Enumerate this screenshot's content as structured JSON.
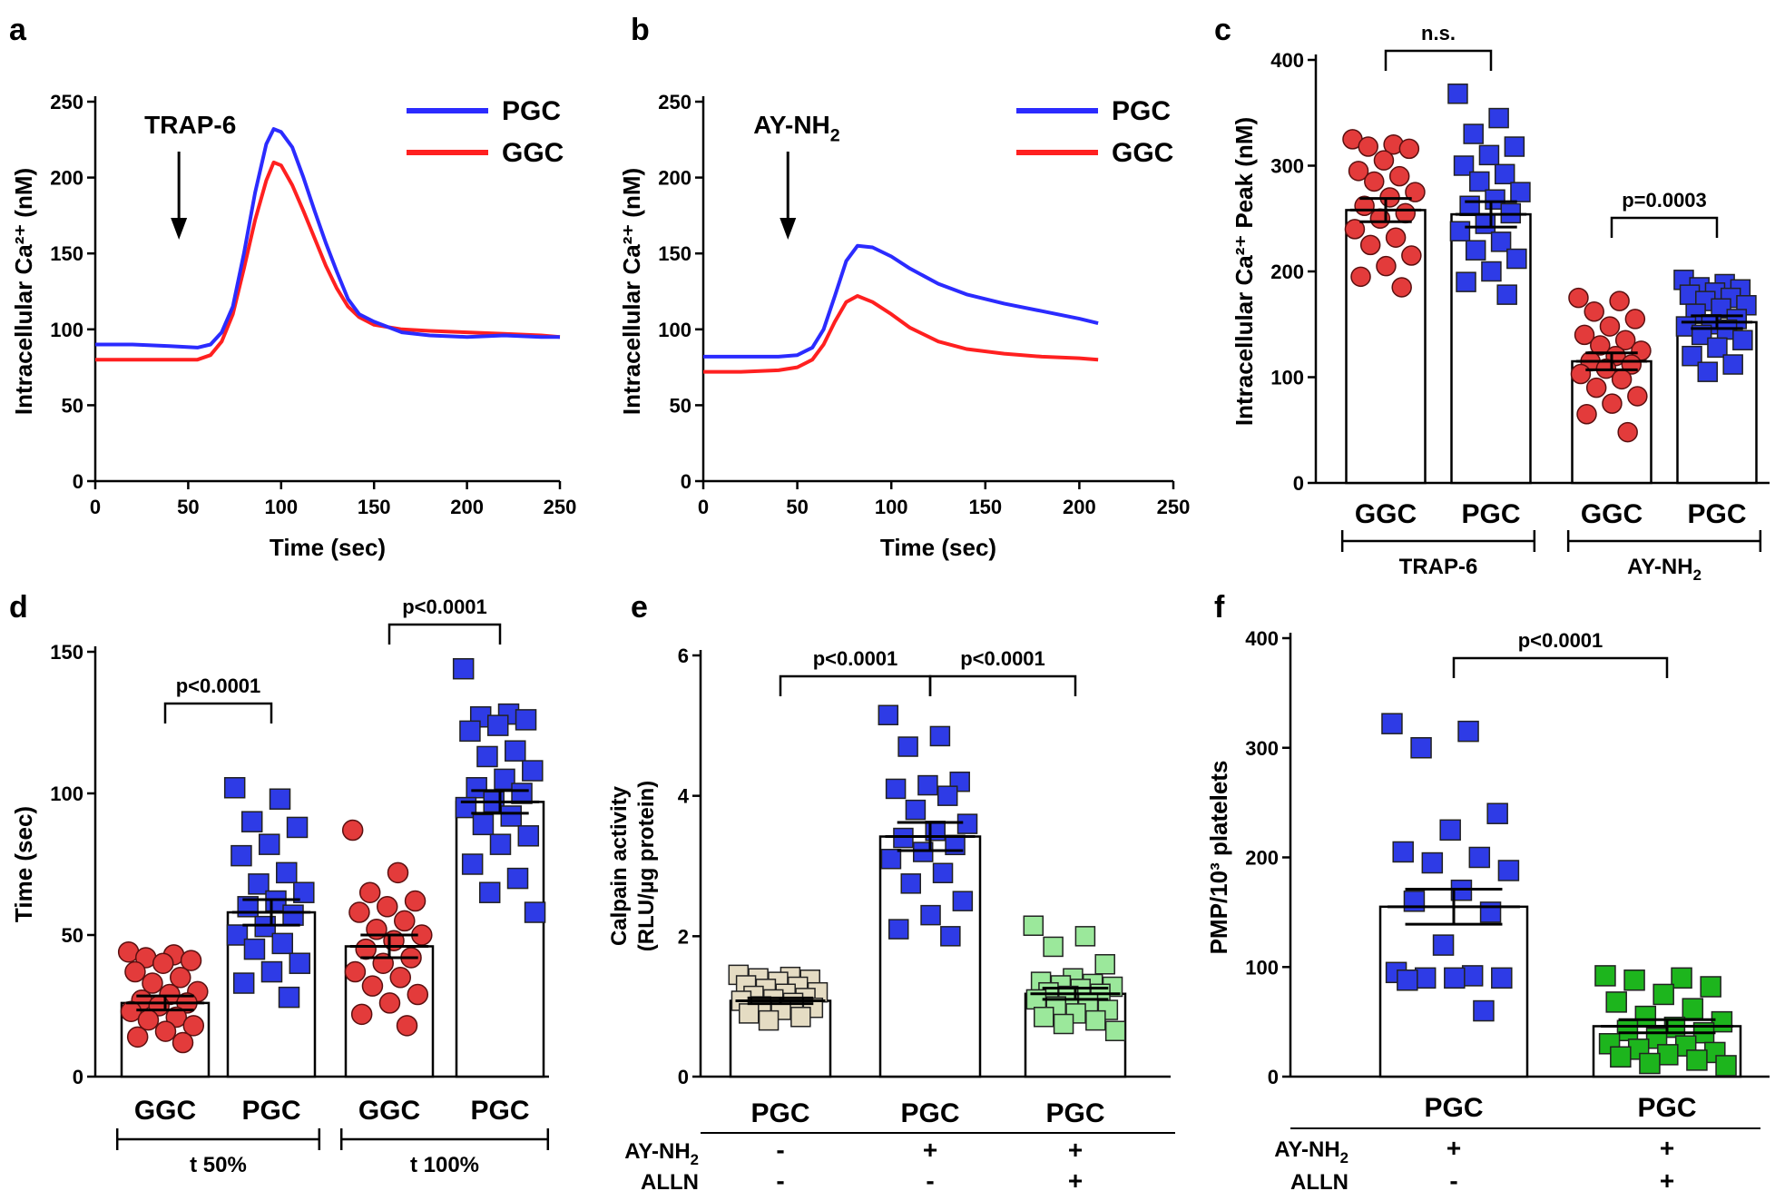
{
  "chart_data": [
    {
      "panel": "a",
      "type": "line",
      "xlabel": "Time (sec)",
      "ylabel": "Intracellular Ca²⁺ (nM)",
      "xlim": [
        0,
        250
      ],
      "ylim": [
        0,
        250
      ],
      "xticks": [
        0,
        50,
        100,
        150,
        200,
        250
      ],
      "yticks": [
        0,
        50,
        100,
        150,
        200,
        250
      ],
      "annotation": {
        "label": "TRAP-6",
        "x": 45
      },
      "series": [
        {
          "name": "PGC",
          "color": "#2b2bff",
          "x": [
            0,
            20,
            40,
            55,
            62,
            68,
            74,
            80,
            86,
            92,
            96,
            100,
            106,
            112,
            118,
            124,
            130,
            136,
            142,
            150,
            165,
            180,
            200,
            220,
            240,
            250
          ],
          "y": [
            90,
            90,
            89,
            88,
            90,
            98,
            115,
            150,
            190,
            222,
            232,
            230,
            220,
            200,
            178,
            157,
            138,
            120,
            110,
            105,
            98,
            96,
            95,
            96,
            95,
            95
          ]
        },
        {
          "name": "GGC",
          "color": "#ff2020",
          "x": [
            0,
            20,
            40,
            55,
            62,
            68,
            74,
            80,
            86,
            92,
            96,
            100,
            106,
            112,
            118,
            124,
            130,
            136,
            142,
            150,
            165,
            180,
            200,
            220,
            240,
            250
          ],
          "y": [
            80,
            80,
            80,
            80,
            83,
            92,
            110,
            140,
            172,
            198,
            210,
            208,
            195,
            178,
            160,
            142,
            127,
            115,
            108,
            103,
            100,
            99,
            98,
            97,
            96,
            95
          ]
        }
      ]
    },
    {
      "panel": "b",
      "type": "line",
      "xlabel": "Time (sec)",
      "ylabel": "Intracellular Ca²⁺ (nM)",
      "xlim": [
        0,
        250
      ],
      "ylim": [
        0,
        250
      ],
      "xticks": [
        0,
        50,
        100,
        150,
        200,
        250
      ],
      "yticks": [
        0,
        50,
        100,
        150,
        200,
        250
      ],
      "annotation": {
        "label": "AY-NH",
        "sub": "2",
        "x": 45
      },
      "series": [
        {
          "name": "PGC",
          "color": "#2b2bff",
          "x": [
            0,
            20,
            40,
            50,
            58,
            64,
            70,
            76,
            82,
            90,
            100,
            110,
            125,
            140,
            160,
            180,
            200,
            210
          ],
          "y": [
            82,
            82,
            82,
            83,
            88,
            100,
            122,
            145,
            155,
            154,
            148,
            140,
            130,
            123,
            117,
            112,
            107,
            104
          ]
        },
        {
          "name": "GGC",
          "color": "#ff2020",
          "x": [
            0,
            20,
            40,
            50,
            58,
            64,
            70,
            76,
            82,
            90,
            100,
            110,
            125,
            140,
            160,
            180,
            200,
            210
          ],
          "y": [
            72,
            72,
            73,
            75,
            80,
            90,
            105,
            118,
            122,
            118,
            110,
            101,
            92,
            87,
            84,
            82,
            81,
            80
          ]
        }
      ]
    },
    {
      "panel": "c",
      "type": "bar",
      "ylabel": "Intracellular Ca²⁺ Peak (nM)",
      "ylim": [
        0,
        400
      ],
      "yticks": [
        0,
        100,
        200,
        300,
        400
      ],
      "categories": [
        "GGC",
        "PGC",
        "GGC",
        "PGC"
      ],
      "groups": [
        {
          "label": "TRAP-6"
        },
        {
          "label": "AY-NH",
          "sub": "2"
        }
      ],
      "bars": [
        {
          "value": 258,
          "sem": 11,
          "color": "#e33b3b",
          "marker": "circle",
          "points": [
            325,
            320,
            318,
            316,
            305,
            295,
            290,
            285,
            275,
            270,
            262,
            255,
            250,
            240,
            232,
            225,
            215,
            205,
            195,
            185
          ]
        },
        {
          "value": 254,
          "sem": 12,
          "color": "#2e3be6",
          "marker": "square",
          "points": [
            368,
            345,
            330,
            318,
            310,
            300,
            292,
            285,
            275,
            268,
            262,
            255,
            245,
            238,
            228,
            220,
            212,
            200,
            190,
            178
          ]
        },
        {
          "value": 115,
          "sem": 8,
          "color": "#e33b3b",
          "marker": "circle",
          "points": [
            175,
            172,
            162,
            155,
            148,
            140,
            135,
            130,
            125,
            120,
            115,
            112,
            108,
            103,
            98,
            90,
            82,
            75,
            65,
            48
          ]
        },
        {
          "value": 152,
          "sem": 6,
          "color": "#2e3be6",
          "marker": "square",
          "points": [
            192,
            188,
            185,
            183,
            180,
            178,
            175,
            172,
            168,
            165,
            160,
            155,
            150,
            148,
            145,
            140,
            135,
            128,
            120,
            112,
            105
          ]
        }
      ],
      "brackets": [
        {
          "from": 0,
          "to": 1,
          "label": "n.s."
        },
        {
          "from": 2,
          "to": 3,
          "label": "p=0.0003"
        }
      ]
    },
    {
      "panel": "d",
      "type": "bar",
      "ylabel": "Time (sec)",
      "ylim": [
        0,
        150
      ],
      "yticks": [
        0,
        50,
        100,
        150
      ],
      "categories": [
        "GGC",
        "PGC",
        "GGC",
        "PGC"
      ],
      "groups": [
        {
          "label": "t 50%"
        },
        {
          "label": "t 100%"
        }
      ],
      "bars": [
        {
          "value": 26,
          "sem": 2.5,
          "color": "#e33b3b",
          "marker": "circle",
          "points": [
            44,
            43,
            42,
            41,
            40,
            37,
            35,
            33,
            30,
            29,
            27,
            26,
            25,
            23,
            21,
            20,
            18,
            16,
            14,
            12
          ]
        },
        {
          "value": 58,
          "sem": 4.5,
          "color": "#2e3be6",
          "marker": "square",
          "points": [
            102,
            98,
            90,
            88,
            82,
            78,
            72,
            68,
            65,
            62,
            60,
            57,
            53,
            50,
            47,
            45,
            40,
            37,
            33,
            28
          ]
        },
        {
          "value": 46,
          "sem": 4,
          "color": "#e33b3b",
          "marker": "circle",
          "points": [
            87,
            72,
            65,
            62,
            60,
            58,
            55,
            52,
            50,
            48,
            45,
            42,
            40,
            37,
            35,
            32,
            29,
            26,
            22,
            18
          ]
        },
        {
          "value": 97,
          "sem": 4,
          "color": "#2e3be6",
          "marker": "square",
          "points": [
            144,
            128,
            127,
            126,
            124,
            122,
            115,
            113,
            108,
            105,
            102,
            100,
            97,
            95,
            92,
            89,
            85,
            82,
            75,
            70,
            65,
            58
          ]
        }
      ],
      "brackets": [
        {
          "from": 0,
          "to": 1,
          "label": "p<0.0001"
        },
        {
          "from": 2,
          "to": 3,
          "label": "p<0.0001"
        }
      ]
    },
    {
      "panel": "e",
      "type": "bar",
      "ylabel": "Calpain activity",
      "ylabel2": "(RLU/µg protein)",
      "ylim": [
        0,
        6
      ],
      "yticks": [
        0,
        2,
        4,
        6
      ],
      "categories": [
        "PGC",
        "PGC",
        "PGC"
      ],
      "treatments": [
        {
          "label": "AY-NH",
          "sub": "2",
          "values": [
            "-",
            "+",
            "+"
          ]
        },
        {
          "label": "ALLN",
          "values": [
            "-",
            "-",
            "+"
          ]
        }
      ],
      "bars": [
        {
          "value": 1.08,
          "sem": 0.04,
          "color": "#e5dcc3",
          "marker": "square",
          "points": [
            1.45,
            1.42,
            1.4,
            1.38,
            1.35,
            1.3,
            1.28,
            1.25,
            1.2,
            1.18,
            1.15,
            1.12,
            1.1,
            1.08,
            1.05,
            1.0,
            0.98,
            0.95,
            0.9,
            0.85,
            0.8
          ]
        },
        {
          "value": 3.42,
          "sem": 0.2,
          "color": "#2e3be6",
          "marker": "square",
          "points": [
            5.15,
            4.85,
            4.7,
            4.2,
            4.15,
            4.1,
            4.0,
            3.8,
            3.6,
            3.5,
            3.4,
            3.3,
            3.2,
            3.1,
            2.9,
            2.75,
            2.5,
            2.3,
            2.1,
            2.0
          ]
        },
        {
          "value": 1.18,
          "sem": 0.08,
          "color": "#9be89b",
          "marker": "square",
          "points": [
            2.15,
            2.0,
            1.85,
            1.6,
            1.4,
            1.35,
            1.32,
            1.3,
            1.28,
            1.25,
            1.2,
            1.18,
            1.15,
            1.1,
            1.05,
            1.0,
            0.95,
            0.9,
            0.85,
            0.8,
            0.75,
            0.65
          ]
        }
      ],
      "brackets": [
        {
          "from": 0,
          "to": 1,
          "label": "p<0.0001"
        },
        {
          "from": 1,
          "to": 2,
          "label": "p<0.0001"
        }
      ]
    },
    {
      "panel": "f",
      "type": "bar",
      "ylabel": "PMP/10³ platelets",
      "ylim": [
        0,
        400
      ],
      "yticks": [
        0,
        100,
        200,
        300,
        400
      ],
      "categories": [
        "PGC",
        "PGC"
      ],
      "treatments": [
        {
          "label": "AY-NH",
          "sub": "2",
          "values": [
            "+",
            "+"
          ]
        },
        {
          "label": "ALLN",
          "values": [
            "-",
            "+"
          ]
        }
      ],
      "bars": [
        {
          "value": 155,
          "sem": 16,
          "color": "#2e3be6",
          "marker": "square",
          "points": [
            322,
            315,
            300,
            240,
            225,
            205,
            200,
            195,
            188,
            170,
            160,
            150,
            120,
            95,
            92,
            90,
            90,
            90,
            88,
            60
          ]
        },
        {
          "value": 46,
          "sem": 6,
          "color": "#1db51d",
          "marker": "square",
          "points": [
            92,
            90,
            88,
            82,
            75,
            68,
            62,
            55,
            50,
            45,
            42,
            40,
            35,
            30,
            28,
            25,
            22,
            20,
            18,
            15,
            12,
            10
          ]
        }
      ],
      "brackets": [
        {
          "from": 0,
          "to": 1,
          "label": "p<0.0001"
        }
      ]
    }
  ],
  "panel_labels": [
    "a",
    "b",
    "c",
    "d",
    "e",
    "f"
  ]
}
